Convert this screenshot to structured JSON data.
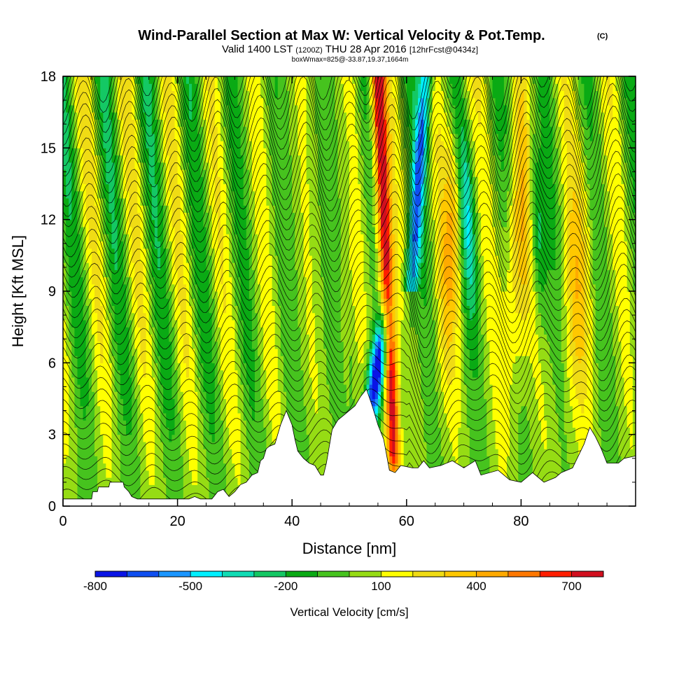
{
  "chart_data": {
    "type": "heatmap",
    "title": "Wind-Parallel Section at Max W: Vertical Velocity & Pot.Temp.",
    "title_suffix": "(C)",
    "subtitle_parts": {
      "valid": "Valid 1400 LST",
      "utc": "(1200Z)",
      "date": "THU 28 Apr 2016",
      "forecast": "[12hrFcst@0434z]"
    },
    "info_line": "boxWmax=825@-33.87,19.37,1664m",
    "xlabel": "Distance [nm]",
    "ylabel": "Height [Kft MSL]",
    "xlim": [
      0,
      100
    ],
    "ylim": [
      0,
      18
    ],
    "x_ticks": [
      0,
      20,
      40,
      60,
      80
    ],
    "y_ticks": [
      0,
      3,
      6,
      9,
      12,
      15,
      18
    ],
    "colorbar": {
      "label": "Vertical Velocity [cm/s]",
      "levels": [
        -800,
        -700,
        -600,
        -500,
        -400,
        -300,
        -200,
        -100,
        0,
        100,
        200,
        300,
        400,
        500,
        600,
        700,
        800
      ],
      "colors": [
        "#0a14e6",
        "#0f4ff0",
        "#1a96ff",
        "#00f0ff",
        "#10dcb4",
        "#14c864",
        "#0aaa14",
        "#46c31e",
        "#96dc14",
        "#ffff00",
        "#f0dc14",
        "#ffc800",
        "#ffaa00",
        "#ff7800",
        "#ff1e00",
        "#d20f1e"
      ],
      "tick_labels": [
        "-800",
        "-500",
        "-200",
        "100",
        "400",
        "700"
      ]
    },
    "terrain_kft": [
      [
        0,
        0.3
      ],
      [
        5,
        0.3
      ],
      [
        5.2,
        0.6
      ],
      [
        6,
        0.6
      ],
      [
        6.2,
        0.8
      ],
      [
        8,
        0.8
      ],
      [
        8.2,
        1.0
      ],
      [
        10.5,
        1.0
      ],
      [
        10.7,
        0.8
      ],
      [
        11.5,
        0.6
      ],
      [
        12,
        0.4
      ],
      [
        13,
        0.3
      ],
      [
        20,
        0.3
      ],
      [
        22,
        0.3
      ],
      [
        23,
        0.4
      ],
      [
        24,
        0.3
      ],
      [
        26,
        0.3
      ],
      [
        27,
        0.6
      ],
      [
        28,
        0.7
      ],
      [
        29,
        0.4
      ],
      [
        30,
        0.6
      ],
      [
        31,
        0.9
      ],
      [
        32,
        1.0
      ],
      [
        33,
        1.3
      ],
      [
        34,
        1.4
      ],
      [
        34.5,
        1.9
      ],
      [
        35,
        2.0
      ],
      [
        35.5,
        2.4
      ],
      [
        36,
        2.5
      ],
      [
        37,
        2.6
      ],
      [
        38,
        3.4
      ],
      [
        39,
        4.0
      ],
      [
        40,
        3.4
      ],
      [
        40.5,
        2.8
      ],
      [
        41,
        2.3
      ],
      [
        42,
        2.0
      ],
      [
        43,
        1.8
      ],
      [
        44,
        1.7
      ],
      [
        45,
        1.3
      ],
      [
        45.5,
        1.3
      ],
      [
        46,
        1.8
      ],
      [
        46.5,
        2.5
      ],
      [
        47,
        3.2
      ],
      [
        48,
        3.6
      ],
      [
        49,
        3.8
      ],
      [
        50,
        4.0
      ],
      [
        51,
        4.2
      ],
      [
        52,
        4.6
      ],
      [
        53,
        4.9
      ],
      [
        54,
        4.2
      ],
      [
        55,
        3.4
      ],
      [
        56,
        2.8
      ],
      [
        57,
        1.5
      ],
      [
        58,
        1.4
      ],
      [
        59,
        1.7
      ],
      [
        61,
        1.6
      ],
      [
        62,
        1.6
      ],
      [
        63,
        1.9
      ],
      [
        64,
        1.6
      ],
      [
        66,
        1.7
      ],
      [
        68,
        1.9
      ],
      [
        70,
        1.6
      ],
      [
        72,
        1.9
      ],
      [
        73,
        1.3
      ],
      [
        76,
        1.5
      ],
      [
        77,
        1.3
      ],
      [
        78,
        1.1
      ],
      [
        80,
        1.0
      ],
      [
        82,
        1.4
      ],
      [
        84,
        1.0
      ],
      [
        86,
        1.2
      ],
      [
        87,
        1.4
      ],
      [
        89,
        1.6
      ],
      [
        91,
        2.6
      ],
      [
        92,
        3.3
      ],
      [
        93,
        2.9
      ],
      [
        94,
        2.4
      ],
      [
        95,
        1.8
      ],
      [
        97,
        1.8
      ],
      [
        98,
        2.0
      ],
      [
        100,
        2.1
      ]
    ],
    "features": {
      "updraft_core": {
        "x_at_3kft": 58,
        "x_at_18kft": 55.5,
        "peak_cm_s": 825
      },
      "downdraft_core": {
        "x_at_6kft": 55,
        "x_at_18kft": 61.5,
        "min_cm_s": -800
      }
    }
  }
}
